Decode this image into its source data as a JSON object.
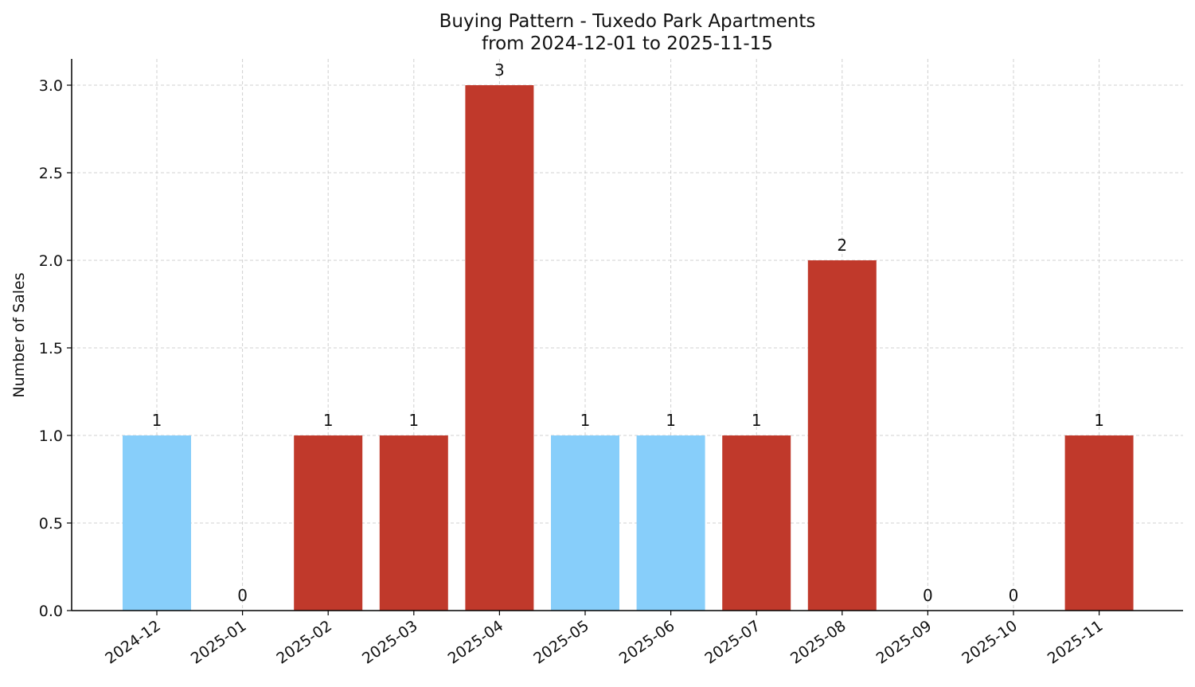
{
  "chart_data": {
    "type": "bar",
    "title": "Buying Pattern - Tuxedo Park Apartments",
    "subtitle": "from 2024-12-01 to 2025-11-15",
    "xlabel": "",
    "ylabel": "Number of Sales",
    "ylim": [
      0,
      3.15
    ],
    "yticks": [
      "0.0",
      "0.5",
      "1.0",
      "1.5",
      "2.0",
      "2.5",
      "3.0"
    ],
    "grid": true,
    "categories": [
      "2024-12",
      "2025-01",
      "2025-02",
      "2025-03",
      "2025-04",
      "2025-05",
      "2025-06",
      "2025-07",
      "2025-08",
      "2025-09",
      "2025-10",
      "2025-11"
    ],
    "values": [
      1,
      0,
      1,
      1,
      3,
      1,
      1,
      1,
      2,
      0,
      0,
      1
    ],
    "value_labels": [
      "1",
      "0",
      "1",
      "1",
      "3",
      "1",
      "1",
      "1",
      "2",
      "0",
      "0",
      "1"
    ],
    "bar_colors": [
      "#87CEFA",
      "#87CEFA",
      "#C0392B",
      "#C0392B",
      "#C0392B",
      "#87CEFA",
      "#87CEFA",
      "#C0392B",
      "#C0392B",
      "#C0392B",
      "#C0392B",
      "#C0392B"
    ]
  }
}
